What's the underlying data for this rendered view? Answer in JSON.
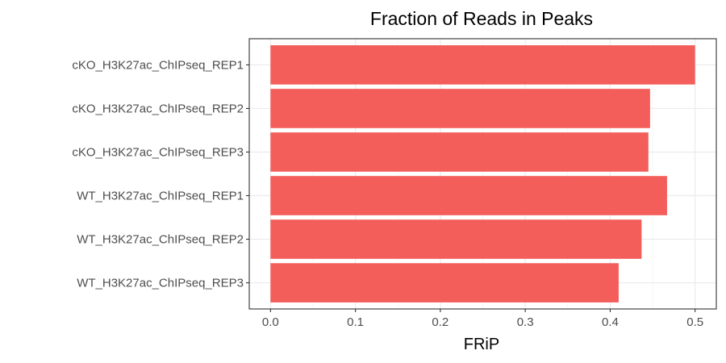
{
  "chart_data": {
    "type": "bar",
    "orientation": "horizontal",
    "title": "Fraction of Reads in Peaks",
    "xlabel": "FRiP",
    "ylabel": "",
    "categories": [
      "cKO_H3K27ac_ChIPseq_REP1",
      "cKO_H3K27ac_ChIPseq_REP2",
      "cKO_H3K27ac_ChIPseq_REP3",
      "WT_H3K27ac_ChIPseq_REP1",
      "WT_H3K27ac_ChIPseq_REP2",
      "WT_H3K27ac_ChIPseq_REP3"
    ],
    "values": [
      0.5,
      0.447,
      0.445,
      0.467,
      0.437,
      0.41
    ],
    "xlim": [
      -0.025,
      0.525
    ],
    "xticks": [
      "0.0",
      "0.1",
      "0.2",
      "0.3",
      "0.4",
      "0.5"
    ],
    "bar_color": "#F35E5A",
    "grid": true,
    "legend": "none"
  }
}
